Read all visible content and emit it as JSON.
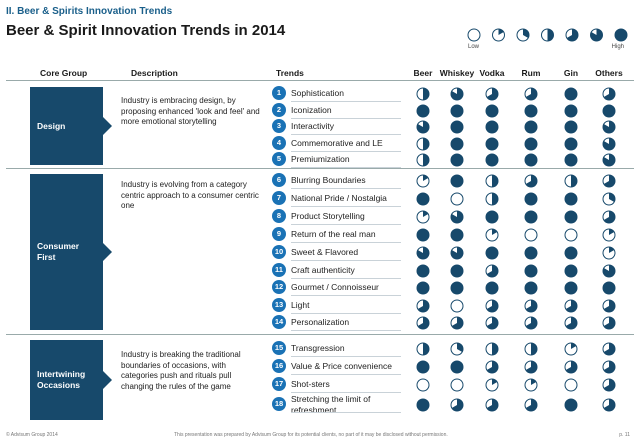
{
  "section_label": "II. Beer & Spirits Innovation Trends",
  "title": "Beer & Spirit Innovation Trends in 2014",
  "legend": {
    "low": "Low",
    "high": "High",
    "levels": [
      0,
      1,
      2,
      3,
      4,
      5,
      6
    ]
  },
  "headers": {
    "core_group": "Core Group",
    "description": "Description",
    "trends": "Trends",
    "columns": [
      "Beer",
      "Whiskey",
      "Vodka",
      "Rum",
      "Gin",
      "Others"
    ]
  },
  "groups": [
    {
      "name": "Design",
      "description": "Industry is embracing design, by proposing enhanced 'look and feel' and more emotional storytelling"
    },
    {
      "name": "Consumer First",
      "description": "Industry is evolving from a category centric approach to a consumer centric one"
    },
    {
      "name": "Intertwining Occasions",
      "description": "Industry is breaking the traditional boundaries of occasions, with categories push and rituals pull changing the rules of the game"
    }
  ],
  "trends": [
    {
      "num": "1",
      "name": "Sophistication",
      "ratings": [
        3,
        5,
        4,
        4,
        6,
        4
      ]
    },
    {
      "num": "2",
      "name": "Iconization",
      "ratings": [
        6,
        6,
        6,
        6,
        6,
        6
      ]
    },
    {
      "num": "3",
      "name": "Interactivity",
      "ratings": [
        5,
        6,
        6,
        6,
        6,
        5
      ]
    },
    {
      "num": "4",
      "name": "Commemorative and LE",
      "ratings": [
        3,
        6,
        6,
        6,
        6,
        5
      ]
    },
    {
      "num": "5",
      "name": "Premiumization",
      "ratings": [
        3,
        6,
        6,
        6,
        6,
        5
      ]
    },
    {
      "num": "6",
      "name": "Blurring Boundaries",
      "ratings": [
        1,
        6,
        3,
        4,
        3,
        4
      ]
    },
    {
      "num": "7",
      "name": "National Pride / Nostalgia",
      "ratings": [
        6,
        0,
        3,
        6,
        6,
        2
      ]
    },
    {
      "num": "8",
      "name": "Product Storytelling",
      "ratings": [
        1,
        5,
        6,
        6,
        6,
        4
      ]
    },
    {
      "num": "9",
      "name": "Return of the real man",
      "ratings": [
        6,
        6,
        1,
        0,
        0,
        1
      ]
    },
    {
      "num": "10",
      "name": "Sweet & Flavored",
      "ratings": [
        5,
        5,
        6,
        6,
        6,
        1
      ]
    },
    {
      "num": "11",
      "name": "Craft authenticity",
      "ratings": [
        6,
        6,
        4,
        6,
        6,
        5
      ]
    },
    {
      "num": "12",
      "name": "Gourmet / Connoisseur",
      "ratings": [
        6,
        6,
        6,
        6,
        6,
        6
      ]
    },
    {
      "num": "13",
      "name": "Light",
      "ratings": [
        4,
        0,
        4,
        4,
        4,
        4
      ]
    },
    {
      "num": "14",
      "name": "Personalization",
      "ratings": [
        4,
        4,
        4,
        4,
        4,
        4
      ]
    },
    {
      "num": "15",
      "name": "Transgression",
      "ratings": [
        3,
        2,
        3,
        3,
        1,
        4
      ]
    },
    {
      "num": "16",
      "name": "Value & Price convenience",
      "ratings": [
        6,
        6,
        4,
        4,
        4,
        4
      ]
    },
    {
      "num": "17",
      "name": "Shot-sters",
      "ratings": [
        0,
        0,
        1,
        1,
        0,
        4
      ]
    },
    {
      "num": "18",
      "name": "Stretching the limit of refreshment",
      "ratings": [
        6,
        4,
        4,
        4,
        6,
        4
      ]
    }
  ],
  "footer": {
    "left": "© Advisum Group 2014",
    "middle": "This presentation was prepared by Advisum Group for its potential clients, no part of it may be disclosed without permission.",
    "page": "p. 11"
  }
}
